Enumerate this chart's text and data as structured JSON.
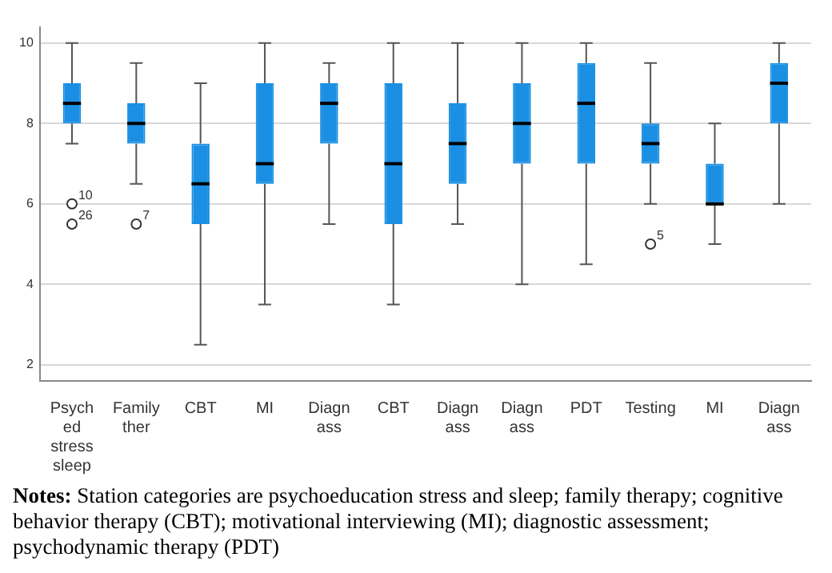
{
  "chart_data": {
    "type": "box",
    "categories": [
      "Psych ed stress sleep",
      "Family ther",
      "CBT",
      "MI",
      "Diagn ass",
      "CBT",
      "Diagn ass",
      "Diagn ass",
      "PDT",
      "Testing",
      "MI",
      "Diagn ass"
    ],
    "color": "#1a8fe3",
    "boxes": [
      {
        "low": 7.5,
        "q1": 8,
        "median": 8.5,
        "q3": 9,
        "high": 10,
        "outliers": [
          6,
          5.5
        ]
      },
      {
        "low": 6.5,
        "q1": 7.5,
        "median": 8,
        "q3": 8.5,
        "high": 9.5,
        "outliers": [
          5.5
        ]
      },
      {
        "low": 2.5,
        "q1": 5.5,
        "median": 6.5,
        "q3": 7.5,
        "high": 9
      },
      {
        "low": 3.5,
        "q1": 6.5,
        "median": 7,
        "q3": 9,
        "high": 10
      },
      {
        "low": 5.5,
        "q1": 7.5,
        "median": 8.5,
        "q3": 9,
        "high": 9.5
      },
      {
        "low": 3.5,
        "q1": 5.5,
        "median": 7,
        "q3": 9,
        "high": 10
      },
      {
        "low": 5.5,
        "q1": 6.5,
        "median": 7.5,
        "q3": 8.5,
        "high": 10
      },
      {
        "low": 4,
        "q1": 7,
        "median": 8,
        "q3": 9,
        "high": 10
      },
      {
        "low": 4.5,
        "q1": 7,
        "median": 8.5,
        "q3": 9.5,
        "high": 10
      },
      {
        "low": 6,
        "q1": 7,
        "median": 7.5,
        "q3": 8,
        "high": 9.5,
        "outliers": [
          5
        ]
      },
      {
        "low": 5,
        "q1": 6,
        "median": 6,
        "q3": 7,
        "high": 8
      },
      {
        "low": 6,
        "q1": 8,
        "median": 9,
        "q3": 9.5,
        "high": 10
      }
    ],
    "ylim": [
      1.6,
      10.4
    ],
    "yticks": [
      2,
      4,
      6,
      8,
      10
    ],
    "grid": "y",
    "legend": false,
    "annotations": [
      "Notes: Station categories are psychoeducation stress and sleep; family therapy; cognitive behavior therapy (CBT); motivational interviewing (MI); diagnostic assessment; psychodynamic therapy (PDT)",
      "10",
      "26",
      "7",
      "5"
    ]
  }
}
